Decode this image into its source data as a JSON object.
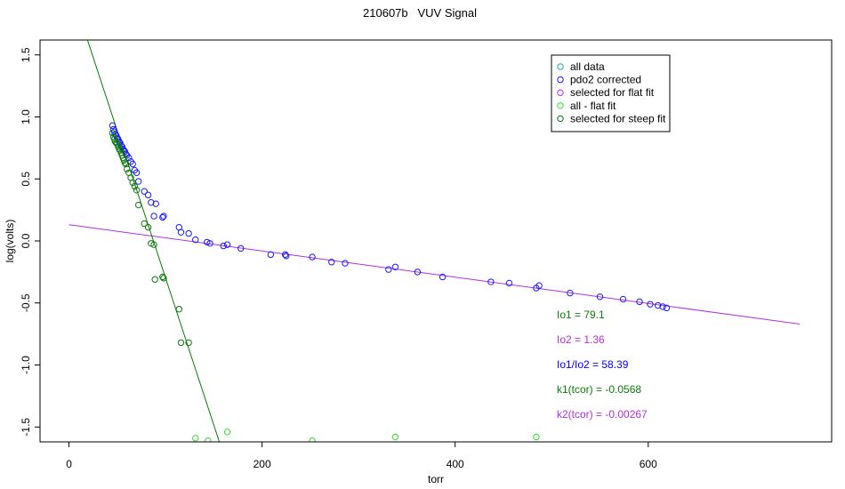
{
  "chart_data": {
    "type": "scatter",
    "title": "210607b   VUV Signal",
    "xlabel": "torr",
    "ylabel": "log(volts)",
    "xlim": [
      -30,
      790
    ],
    "ylim": [
      -1.62,
      1.62
    ],
    "x_ticks": [
      0,
      200,
      400,
      600
    ],
    "y_ticks": [
      -1.5,
      -1.0,
      -0.5,
      0.0,
      0.5,
      1.0,
      1.5
    ],
    "y_tick_labels": [
      "-1.5",
      "-1.0",
      "-0.5",
      "0.0",
      "0.5",
      "1.0",
      "1.5"
    ],
    "grid": false,
    "legend_position": "top-right",
    "colors": {
      "all_data": "#22aaaa",
      "pdo2_corrected": "#1a1aff",
      "flat_fit": "#b030e0",
      "all_minus_flat": "#33dd33",
      "steep_fit": "#0a7a0a",
      "ratio_text": "#0000ff"
    },
    "legend": [
      {
        "label": "all data",
        "color": "#22aaaa"
      },
      {
        "label": "pdo2 corrected",
        "color": "#1a1aff"
      },
      {
        "label": "selected for flat fit",
        "color": "#b030e0"
      },
      {
        "label": "all - flat fit",
        "color": "#33dd33"
      },
      {
        "label": "selected for steep fit",
        "color": "#0a7a0a"
      }
    ],
    "series": [
      {
        "name": "pdo2 corrected",
        "points": [
          [
            45,
            0.93
          ],
          [
            46,
            0.9
          ],
          [
            47,
            0.88
          ],
          [
            48,
            0.86
          ],
          [
            49,
            0.85
          ],
          [
            50,
            0.83
          ],
          [
            51,
            0.82
          ],
          [
            52,
            0.8
          ],
          [
            53,
            0.79
          ],
          [
            54,
            0.77
          ],
          [
            55,
            0.76
          ],
          [
            56,
            0.74
          ],
          [
            57,
            0.73
          ],
          [
            58,
            0.72
          ],
          [
            59,
            0.7
          ],
          [
            60,
            0.69
          ],
          [
            62,
            0.67
          ],
          [
            64,
            0.64
          ],
          [
            66,
            0.62
          ],
          [
            68,
            0.57
          ],
          [
            70,
            0.55
          ],
          [
            72,
            0.48
          ],
          [
            78,
            0.4
          ],
          [
            82,
            0.37
          ],
          [
            85,
            0.31
          ],
          [
            88,
            0.2
          ],
          [
            90,
            0.3
          ],
          [
            97,
            0.19
          ],
          [
            98,
            0.2
          ],
          [
            114,
            0.11
          ],
          [
            116,
            0.07
          ],
          [
            124,
            0.06
          ]
        ]
      },
      {
        "name": "selected for flat fit",
        "points": [
          [
            131,
            0.01
          ],
          [
            143,
            -0.01
          ],
          [
            146,
            -0.02
          ],
          [
            160,
            -0.04
          ],
          [
            164,
            -0.03
          ],
          [
            178,
            -0.06
          ],
          [
            209,
            -0.11
          ],
          [
            224,
            -0.11
          ],
          [
            225,
            -0.12
          ],
          [
            252,
            -0.13
          ],
          [
            272,
            -0.17
          ],
          [
            286,
            -0.18
          ],
          [
            331,
            -0.23
          ],
          [
            338,
            -0.21
          ],
          [
            361,
            -0.25
          ],
          [
            387,
            -0.29
          ],
          [
            437,
            -0.33
          ],
          [
            456,
            -0.34
          ],
          [
            484,
            -0.38
          ],
          [
            487,
            -0.36
          ],
          [
            519,
            -0.42
          ],
          [
            550,
            -0.45
          ],
          [
            574,
            -0.47
          ],
          [
            591,
            -0.49
          ],
          [
            602,
            -0.51
          ],
          [
            610,
            -0.52
          ],
          [
            615,
            -0.53
          ],
          [
            619,
            -0.54
          ]
        ]
      },
      {
        "name": "all - flat fit",
        "points": [
          [
            131,
            -1.59
          ],
          [
            144,
            -1.61
          ],
          [
            164,
            -1.54
          ],
          [
            252,
            -1.61
          ],
          [
            338,
            -1.58
          ],
          [
            484,
            -1.58
          ]
        ]
      },
      {
        "name": "selected for steep fit",
        "points": [
          [
            45,
            0.87
          ],
          [
            46,
            0.84
          ],
          [
            47,
            0.82
          ],
          [
            48,
            0.8
          ],
          [
            49,
            0.79
          ],
          [
            50,
            0.78
          ],
          [
            51,
            0.76
          ],
          [
            52,
            0.74
          ],
          [
            53,
            0.73
          ],
          [
            54,
            0.71
          ],
          [
            55,
            0.69
          ],
          [
            56,
            0.67
          ],
          [
            57,
            0.65
          ],
          [
            58,
            0.63
          ],
          [
            59,
            0.62
          ],
          [
            60,
            0.58
          ],
          [
            62,
            0.55
          ],
          [
            64,
            0.51
          ],
          [
            66,
            0.47
          ],
          [
            68,
            0.44
          ],
          [
            70,
            0.41
          ],
          [
            72,
            0.29
          ],
          [
            78,
            0.14
          ],
          [
            82,
            0.11
          ],
          [
            85,
            -0.02
          ],
          [
            88,
            -0.03
          ],
          [
            89,
            -0.31
          ],
          [
            97,
            -0.29
          ],
          [
            98,
            -0.3
          ],
          [
            114,
            -0.55
          ],
          [
            116,
            -0.82
          ],
          [
            124,
            -0.82
          ]
        ]
      }
    ],
    "fit_lines": [
      {
        "name": "flat fit",
        "color": "#b030e0",
        "x": [
          0,
          757
        ],
        "y": [
          0.131,
          -0.67
        ]
      },
      {
        "name": "steep fit",
        "color": "#0a7a0a",
        "x": [
          12,
          157
        ],
        "y": [
          1.79,
          -1.65
        ]
      }
    ],
    "annotations": [
      {
        "key": "Io1",
        "text": "Io1 =  79.1",
        "color": "#0a7a0a"
      },
      {
        "key": "Io2",
        "text": "Io2 =  1.36",
        "color": "#b030e0"
      },
      {
        "key": "ratio",
        "text": "Io1/Io2 =  58.39",
        "color": "#0000ff"
      },
      {
        "key": "k1",
        "text": "k1(tcor) =  -0.0568",
        "color": "#0a7a0a"
      },
      {
        "key": "k2",
        "text": "k2(tcor) =  -0.00267",
        "color": "#b030e0"
      }
    ]
  }
}
